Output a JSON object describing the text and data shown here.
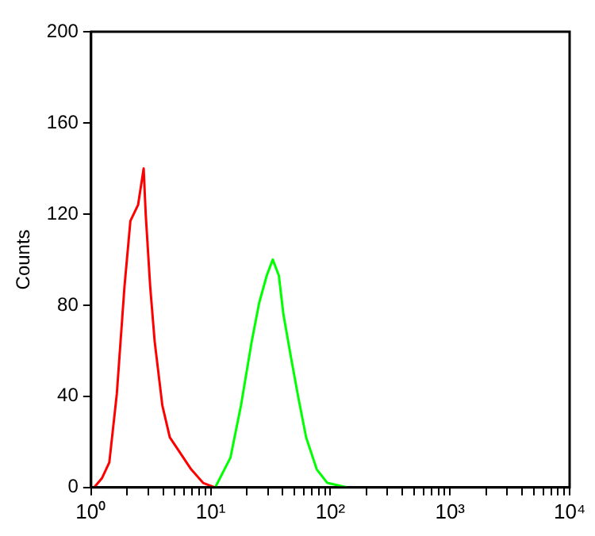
{
  "chart_data": {
    "type": "line",
    "ylabel": "Counts",
    "log": "x",
    "grid": false,
    "legend": false,
    "marker": "none",
    "line_style": "solid",
    "xlim": [
      1,
      10000
    ],
    "xticks": [
      {
        "value": 1,
        "label": "10⁰"
      },
      {
        "value": 2,
        "label": null
      },
      {
        "value": 3,
        "label": null
      },
      {
        "value": 4,
        "label": null
      },
      {
        "value": 5,
        "label": null
      },
      {
        "value": 6,
        "label": null
      },
      {
        "value": 7,
        "label": null
      },
      {
        "value": 8,
        "label": null
      },
      {
        "value": 9,
        "label": null
      },
      {
        "value": 10,
        "label": "10¹"
      },
      {
        "value": 20,
        "label": null
      },
      {
        "value": 30,
        "label": null
      },
      {
        "value": 40,
        "label": null
      },
      {
        "value": 50,
        "label": null
      },
      {
        "value": 60,
        "label": null
      },
      {
        "value": 70,
        "label": null
      },
      {
        "value": 80,
        "label": null
      },
      {
        "value": 90,
        "label": null
      },
      {
        "value": 100,
        "label": "10²"
      },
      {
        "value": 200,
        "label": null
      },
      {
        "value": 300,
        "label": null
      },
      {
        "value": 400,
        "label": null
      },
      {
        "value": 500,
        "label": null
      },
      {
        "value": 600,
        "label": null
      },
      {
        "value": 700,
        "label": null
      },
      {
        "value": 800,
        "label": null
      },
      {
        "value": 900,
        "label": null
      },
      {
        "value": 1000,
        "label": "10³"
      },
      {
        "value": 2000,
        "label": null
      },
      {
        "value": 3000,
        "label": null
      },
      {
        "value": 4000,
        "label": null
      },
      {
        "value": 5000,
        "label": null
      },
      {
        "value": 6000,
        "label": null
      },
      {
        "value": 7000,
        "label": null
      },
      {
        "value": 8000,
        "label": null
      },
      {
        "value": 9000,
        "label": null
      },
      {
        "value": 10000,
        "label": "10⁴"
      }
    ],
    "ylim": [
      0,
      200
    ],
    "yticks": [
      0,
      40,
      80,
      120,
      160,
      200
    ],
    "series": [
      {
        "color": "#ff0000",
        "x": [
          1.06,
          1.23,
          1.42,
          1.64,
          1.9,
          2.13,
          2.47,
          2.75,
          2.86,
          3.12,
          3.4,
          3.94,
          4.55,
          5.58,
          6.85,
          8.64,
          10.9
        ],
        "values": [
          0,
          4,
          11,
          41,
          88,
          117,
          124,
          140,
          120,
          88,
          64,
          36,
          22,
          15,
          8,
          2,
          0
        ]
      },
      {
        "color": "#00ff00",
        "x": [
          10.9,
          14.6,
          17.9,
          22,
          25.4,
          29.4,
          33,
          37.1,
          40.5,
          46.9,
          54.2,
          62.7,
          76.9,
          94.3,
          138
        ],
        "values": [
          0,
          13,
          36,
          64,
          81,
          93,
          100,
          93,
          76,
          57,
          39,
          22,
          8,
          2,
          0
        ]
      }
    ]
  }
}
